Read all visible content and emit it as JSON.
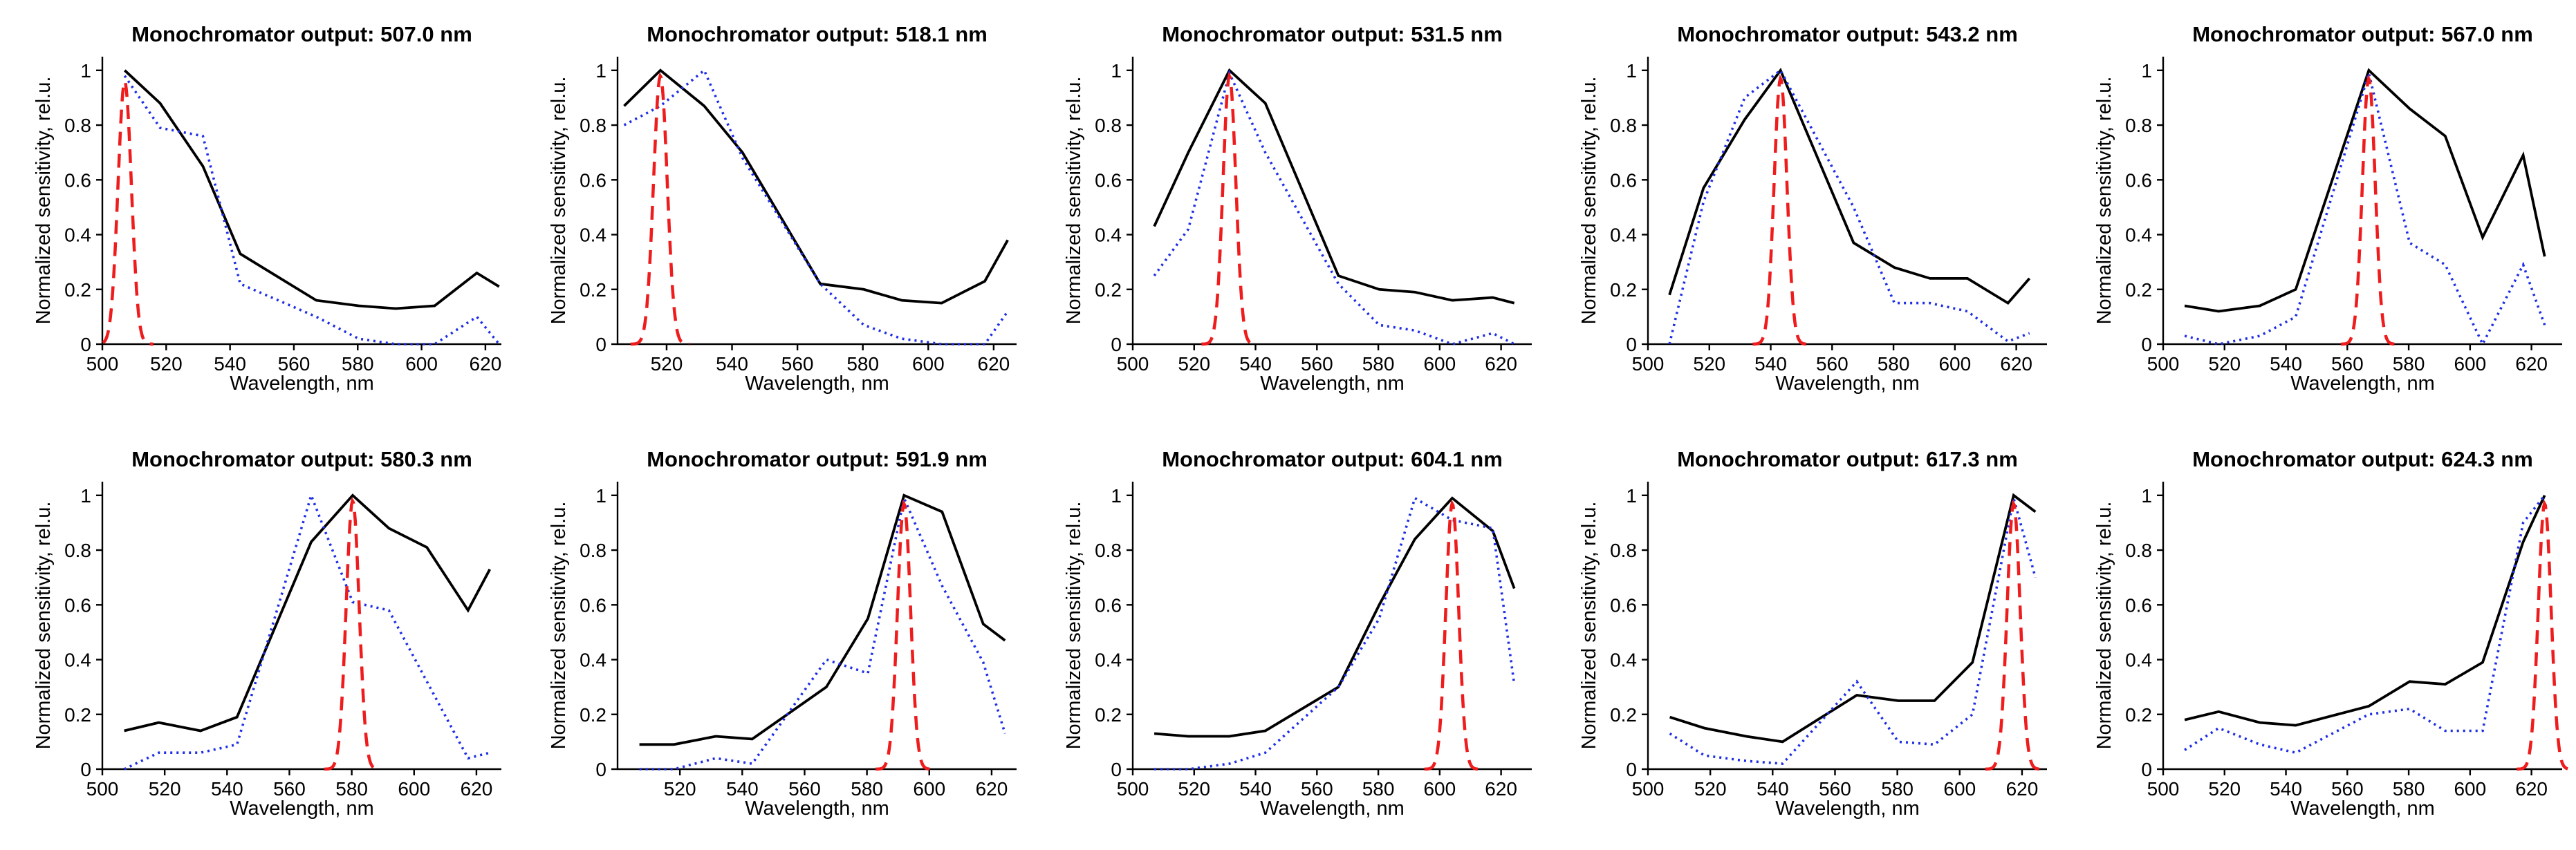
{
  "chart_data": [
    {
      "type": "line",
      "title": "Monochromator output: 507.0 nm",
      "xlabel": "Wavelength, nm",
      "ylabel": "Normalized sensitivity, rel.u.",
      "xlim": [
        500,
        625
      ],
      "ylim": [
        0,
        1.05
      ],
      "xticks": [
        500,
        520,
        540,
        560,
        580,
        600,
        620
      ],
      "yticks": [
        0,
        0.2,
        0.4,
        0.6,
        0.8,
        1
      ],
      "series": [
        {
          "name": "black solid",
          "color": "#000000",
          "x": [
            507.0,
            518.1,
            531.5,
            543.2,
            567.0,
            580.3,
            591.9,
            604.1,
            617.3,
            624.3
          ],
          "y": [
            1.0,
            0.88,
            0.65,
            0.33,
            0.16,
            0.14,
            0.13,
            0.14,
            0.26,
            0.21
          ]
        },
        {
          "name": "blue dotted",
          "color": "#1e2ee6",
          "x": [
            507.0,
            518.1,
            531.5,
            543.2,
            567.0,
            580.3,
            591.9,
            604.1,
            617.3,
            624.3
          ],
          "y": [
            0.98,
            0.79,
            0.76,
            0.22,
            0.1,
            0.02,
            0.0,
            0.0,
            0.1,
            0.0
          ]
        },
        {
          "name": "red dashed",
          "color": "#ee1c1c",
          "center": 507.0,
          "width": 3.5,
          "y_peak": 0.96
        }
      ]
    },
    {
      "type": "line",
      "title": "Monochromator output: 518.1 nm",
      "xlabel": "Wavelength, nm",
      "ylabel": "Normalized sensitivity, rel.u.",
      "xlim": [
        505,
        627
      ],
      "ylim": [
        0,
        1.05
      ],
      "xticks": [
        520,
        540,
        560,
        580,
        600,
        620
      ],
      "yticks": [
        0,
        0.2,
        0.4,
        0.6,
        0.8,
        1
      ],
      "series": [
        {
          "name": "black solid",
          "color": "#000000",
          "x": [
            507.0,
            518.1,
            531.5,
            543.2,
            567.0,
            580.3,
            591.9,
            604.1,
            617.3,
            624.3
          ],
          "y": [
            0.87,
            1.0,
            0.87,
            0.7,
            0.22,
            0.2,
            0.16,
            0.15,
            0.23,
            0.38
          ]
        },
        {
          "name": "blue dotted",
          "color": "#1e2ee6",
          "x": [
            507.0,
            518.1,
            531.5,
            543.2,
            567.0,
            580.3,
            591.9,
            604.1,
            617.3,
            624.3
          ],
          "y": [
            0.8,
            0.87,
            1.0,
            0.68,
            0.22,
            0.07,
            0.02,
            0.0,
            0.0,
            0.12
          ]
        },
        {
          "name": "red dashed",
          "color": "#ee1c1c",
          "center": 518.1,
          "width": 3.5,
          "y_peak": 0.98
        }
      ]
    },
    {
      "type": "line",
      "title": "Monochromator output: 531.5 nm",
      "xlabel": "Wavelength, nm",
      "ylabel": "Normalized sensitivity, rel.u.",
      "xlim": [
        500,
        630
      ],
      "ylim": [
        0,
        1.05
      ],
      "xticks": [
        500,
        520,
        540,
        560,
        580,
        600,
        620
      ],
      "yticks": [
        0,
        0.2,
        0.4,
        0.6,
        0.8,
        1
      ],
      "series": [
        {
          "name": "black solid",
          "color": "#000000",
          "x": [
            507.0,
            518.1,
            531.5,
            543.2,
            567.0,
            580.3,
            591.9,
            604.1,
            617.3,
            624.3
          ],
          "y": [
            0.43,
            0.7,
            1.0,
            0.88,
            0.25,
            0.2,
            0.19,
            0.16,
            0.17,
            0.15
          ]
        },
        {
          "name": "blue dotted",
          "color": "#1e2ee6",
          "x": [
            507.0,
            518.1,
            531.5,
            543.2,
            567.0,
            580.3,
            591.9,
            604.1,
            617.3,
            624.3
          ],
          "y": [
            0.25,
            0.42,
            0.99,
            0.7,
            0.22,
            0.07,
            0.05,
            0.0,
            0.04,
            0.0
          ]
        },
        {
          "name": "red dashed",
          "color": "#ee1c1c",
          "center": 531.5,
          "width": 3.5,
          "y_peak": 0.98
        }
      ]
    },
    {
      "type": "line",
      "title": "Monochromator output: 543.2 nm",
      "xlabel": "Wavelength, nm",
      "ylabel": "Normalized sensitivity, rel.u.",
      "xlim": [
        500,
        630
      ],
      "ylim": [
        0,
        1.05
      ],
      "xticks": [
        500,
        520,
        540,
        560,
        580,
        600,
        620
      ],
      "yticks": [
        0,
        0.2,
        0.4,
        0.6,
        0.8,
        1
      ],
      "series": [
        {
          "name": "black solid",
          "color": "#000000",
          "x": [
            507.0,
            518.1,
            531.5,
            543.2,
            567.0,
            580.3,
            591.9,
            604.1,
            617.3,
            624.3
          ],
          "y": [
            0.18,
            0.57,
            0.82,
            1.0,
            0.37,
            0.28,
            0.24,
            0.24,
            0.15,
            0.24
          ]
        },
        {
          "name": "blue dotted",
          "color": "#1e2ee6",
          "x": [
            507.0,
            518.1,
            531.5,
            543.2,
            567.0,
            580.3,
            591.9,
            604.1,
            617.3,
            624.3
          ],
          "y": [
            0.0,
            0.52,
            0.9,
            1.0,
            0.5,
            0.15,
            0.15,
            0.12,
            0.01,
            0.04
          ]
        },
        {
          "name": "red dashed",
          "color": "#ee1c1c",
          "center": 543.2,
          "width": 3.5,
          "y_peak": 0.97
        }
      ]
    },
    {
      "type": "line",
      "title": "Monochromator output: 567.0 nm",
      "xlabel": "Wavelength, nm",
      "ylabel": "Normalized sensitivity, rel.u.",
      "xlim": [
        500,
        630
      ],
      "ylim": [
        0,
        1.05
      ],
      "xticks": [
        500,
        520,
        540,
        560,
        580,
        600,
        620
      ],
      "yticks": [
        0,
        0.2,
        0.4,
        0.6,
        0.8,
        1
      ],
      "series": [
        {
          "name": "black solid",
          "color": "#000000",
          "x": [
            507.0,
            518.1,
            531.5,
            543.2,
            567.0,
            580.3,
            591.9,
            604.1,
            617.3,
            624.3
          ],
          "y": [
            0.14,
            0.12,
            0.14,
            0.2,
            1.0,
            0.86,
            0.76,
            0.39,
            0.69,
            0.32
          ]
        },
        {
          "name": "blue dotted",
          "color": "#1e2ee6",
          "x": [
            507.0,
            518.1,
            531.5,
            543.2,
            567.0,
            580.3,
            591.9,
            604.1,
            617.3,
            624.3
          ],
          "y": [
            0.03,
            0.0,
            0.03,
            0.1,
            0.99,
            0.37,
            0.29,
            0.0,
            0.29,
            0.07
          ]
        },
        {
          "name": "red dashed",
          "color": "#ee1c1c",
          "center": 567.0,
          "width": 3.5,
          "y_peak": 0.97
        }
      ]
    },
    {
      "type": "line",
      "title": "Monochromator output: 580.3 nm",
      "xlabel": "Wavelength, nm",
      "ylabel": "Normalized sensitivity, rel.u.",
      "xlim": [
        500,
        628
      ],
      "ylim": [
        0,
        1.05
      ],
      "xticks": [
        500,
        520,
        540,
        560,
        580,
        600,
        620
      ],
      "yticks": [
        0,
        0.2,
        0.4,
        0.6,
        0.8,
        1
      ],
      "series": [
        {
          "name": "black solid",
          "color": "#000000",
          "x": [
            507.0,
            518.1,
            531.5,
            543.2,
            567.0,
            580.3,
            591.9,
            604.1,
            617.3,
            624.3
          ],
          "y": [
            0.14,
            0.17,
            0.14,
            0.19,
            0.83,
            1.0,
            0.88,
            0.81,
            0.58,
            0.73
          ]
        },
        {
          "name": "blue dotted",
          "color": "#1e2ee6",
          "x": [
            507.0,
            518.1,
            531.5,
            543.2,
            567.0,
            580.3,
            591.9,
            604.1,
            617.3,
            624.3
          ],
          "y": [
            0.0,
            0.06,
            0.06,
            0.09,
            1.0,
            0.61,
            0.58,
            0.32,
            0.04,
            0.06
          ]
        },
        {
          "name": "red dashed",
          "color": "#ee1c1c",
          "center": 580.3,
          "width": 3.5,
          "y_peak": 0.98
        }
      ]
    },
    {
      "type": "line",
      "title": "Monochromator output: 591.9 nm",
      "xlabel": "Wavelength, nm",
      "ylabel": "Normalized sensitivity, rel.u.",
      "xlim": [
        500,
        628
      ],
      "ylim": [
        0,
        1.05
      ],
      "xticks": [
        520,
        540,
        560,
        580,
        600,
        620
      ],
      "yticks": [
        0,
        0.2,
        0.4,
        0.6,
        0.8,
        1
      ],
      "series": [
        {
          "name": "black solid",
          "color": "#000000",
          "x": [
            507.0,
            518.1,
            531.5,
            543.2,
            567.0,
            580.3,
            591.9,
            604.1,
            617.3,
            624.3
          ],
          "y": [
            0.09,
            0.09,
            0.12,
            0.11,
            0.3,
            0.55,
            1.0,
            0.94,
            0.53,
            0.47
          ]
        },
        {
          "name": "blue dotted",
          "color": "#1e2ee6",
          "x": [
            507.0,
            518.1,
            531.5,
            543.2,
            567.0,
            580.3,
            591.9,
            604.1,
            617.3,
            624.3
          ],
          "y": [
            0.0,
            0.0,
            0.04,
            0.02,
            0.4,
            0.35,
            0.99,
            0.67,
            0.39,
            0.13
          ]
        },
        {
          "name": "red dashed",
          "color": "#ee1c1c",
          "center": 591.9,
          "width": 3.5,
          "y_peak": 0.97
        }
      ]
    },
    {
      "type": "line",
      "title": "Monochromator output: 604.1 nm",
      "xlabel": "Wavelength, nm",
      "ylabel": "Normalized sensitivity, rel.u.",
      "xlim": [
        500,
        630
      ],
      "ylim": [
        0,
        1.05
      ],
      "xticks": [
        500,
        520,
        540,
        560,
        580,
        600,
        620
      ],
      "yticks": [
        0,
        0.2,
        0.4,
        0.6,
        0.8,
        1
      ],
      "series": [
        {
          "name": "black solid",
          "color": "#000000",
          "x": [
            507.0,
            518.1,
            531.5,
            543.2,
            567.0,
            580.3,
            591.9,
            604.1,
            617.3,
            624.3
          ],
          "y": [
            0.13,
            0.12,
            0.12,
            0.14,
            0.3,
            0.6,
            0.84,
            0.99,
            0.87,
            0.66
          ]
        },
        {
          "name": "blue dotted",
          "color": "#1e2ee6",
          "x": [
            507.0,
            518.1,
            531.5,
            543.2,
            567.0,
            580.3,
            591.9,
            604.1,
            617.3,
            624.3
          ],
          "y": [
            0.0,
            0.0,
            0.02,
            0.06,
            0.3,
            0.55,
            0.99,
            0.91,
            0.88,
            0.31
          ]
        },
        {
          "name": "red dashed",
          "color": "#ee1c1c",
          "center": 604.1,
          "width": 3.5,
          "y_peak": 0.97
        }
      ]
    },
    {
      "type": "line",
      "title": "Monochromator output: 617.3 nm",
      "xlabel": "Wavelength, nm",
      "ylabel": "Normalized sensitivity, rel.u.",
      "xlim": [
        500,
        628
      ],
      "ylim": [
        0,
        1.05
      ],
      "xticks": [
        500,
        520,
        540,
        560,
        580,
        600,
        620
      ],
      "yticks": [
        0,
        0.2,
        0.4,
        0.6,
        0.8,
        1
      ],
      "series": [
        {
          "name": "black solid",
          "color": "#000000",
          "x": [
            507.0,
            518.1,
            531.5,
            543.2,
            567.0,
            580.3,
            591.9,
            604.1,
            617.3,
            624.3
          ],
          "y": [
            0.19,
            0.15,
            0.12,
            0.1,
            0.27,
            0.25,
            0.25,
            0.39,
            1.0,
            0.94
          ]
        },
        {
          "name": "blue dotted",
          "color": "#1e2ee6",
          "x": [
            507.0,
            518.1,
            531.5,
            543.2,
            567.0,
            580.3,
            591.9,
            604.1,
            617.3,
            624.3
          ],
          "y": [
            0.13,
            0.05,
            0.03,
            0.02,
            0.32,
            0.1,
            0.09,
            0.2,
            0.99,
            0.7
          ]
        },
        {
          "name": "red dashed",
          "color": "#ee1c1c",
          "center": 617.3,
          "width": 3.5,
          "y_peak": 0.97
        }
      ]
    },
    {
      "type": "line",
      "title": "Monochromator output: 624.3 nm",
      "xlabel": "Wavelength, nm",
      "ylabel": "Normalized sensitivity, rel.u.",
      "xlim": [
        500,
        630
      ],
      "ylim": [
        0,
        1.05
      ],
      "xticks": [
        500,
        520,
        540,
        560,
        580,
        600,
        620
      ],
      "yticks": [
        0,
        0.2,
        0.4,
        0.6,
        0.8,
        1
      ],
      "series": [
        {
          "name": "black solid",
          "color": "#000000",
          "x": [
            507.0,
            518.1,
            531.5,
            543.2,
            567.0,
            580.3,
            591.9,
            604.1,
            617.3,
            624.3
          ],
          "y": [
            0.18,
            0.21,
            0.17,
            0.16,
            0.23,
            0.32,
            0.31,
            0.39,
            0.83,
            1.0
          ]
        },
        {
          "name": "blue dotted",
          "color": "#1e2ee6",
          "x": [
            507.0,
            518.1,
            531.5,
            543.2,
            567.0,
            580.3,
            591.9,
            604.1,
            617.3,
            624.3
          ],
          "y": [
            0.07,
            0.15,
            0.09,
            0.06,
            0.2,
            0.22,
            0.14,
            0.14,
            0.9,
            1.0
          ]
        },
        {
          "name": "red dashed",
          "color": "#ee1c1c",
          "center": 624.3,
          "width": 3.5,
          "y_peak": 0.97
        }
      ]
    }
  ]
}
